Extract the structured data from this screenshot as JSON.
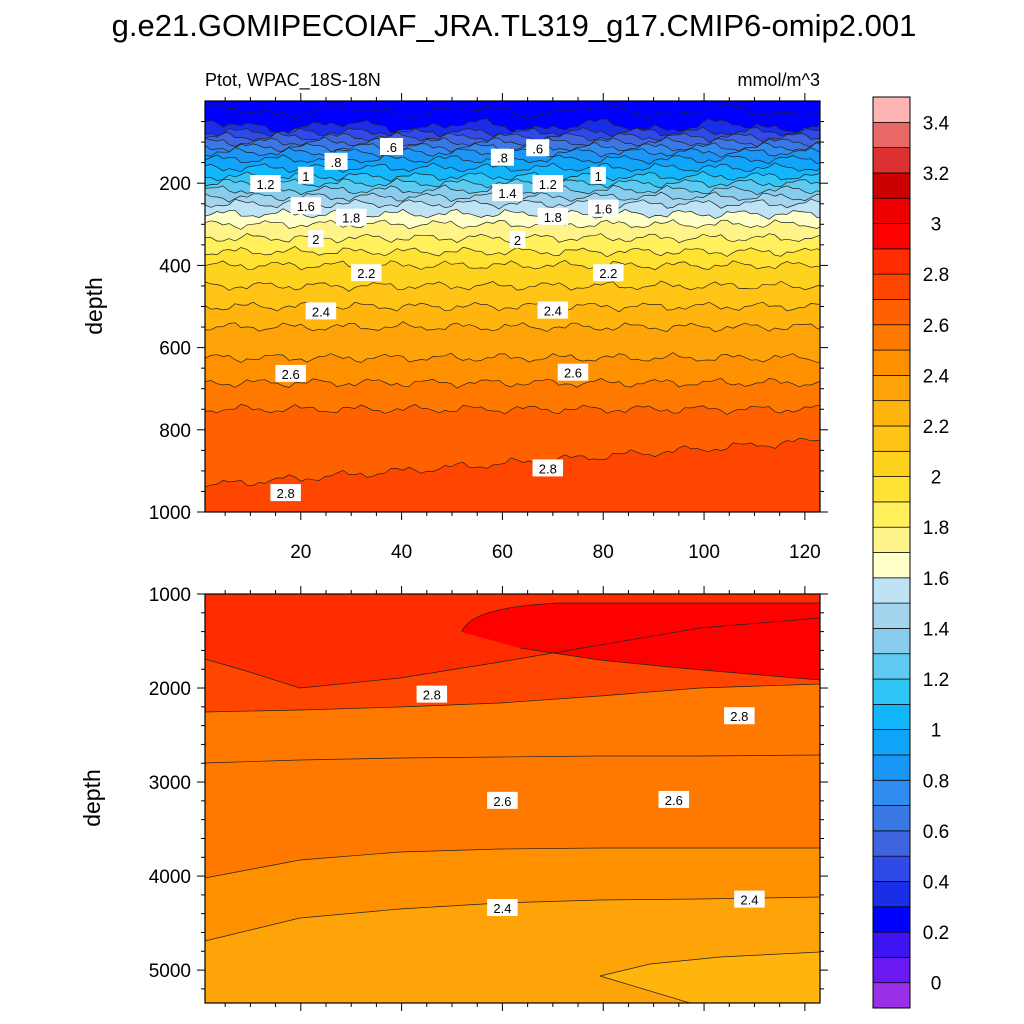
{
  "chart_data": {
    "type": "contour",
    "title": "g.e21.GOMIPECOIAF_JRA.TL319_g17.CMIP6-omip2.001",
    "subtitle_left": "Ptot, WPAC_18S-18N",
    "subtitle_right": "mmol/m^3",
    "colorbar": {
      "levels": [
        0,
        0.1,
        0.2,
        0.3,
        0.4,
        0.5,
        0.6,
        0.7,
        0.8,
        0.9,
        1,
        1.1,
        1.2,
        1.3,
        1.4,
        1.5,
        1.6,
        1.7,
        1.8,
        1.9,
        2,
        2.1,
        2.2,
        2.3,
        2.4,
        2.5,
        2.6,
        2.7,
        2.8,
        2.9,
        3,
        3.1,
        3.2,
        3.3,
        3.4,
        3.5
      ],
      "tick_labels": [
        "0",
        "0.2",
        "0.4",
        "0.6",
        "0.8",
        "1",
        "1.2",
        "1.4",
        "1.6",
        "1.8",
        "2",
        "2.2",
        "2.4",
        "2.6",
        "2.8",
        "3",
        "3.2",
        "3.4"
      ],
      "colors": [
        "#9a2fe8",
        "#6a1af0",
        "#3f14f2",
        "#0000ff",
        "#1a2de8",
        "#2f4ae8",
        "#3f64e0",
        "#3a78e6",
        "#2f8cf0",
        "#1a96f7",
        "#10a4fb",
        "#12b6fc",
        "#2fc6f5",
        "#5ecaf2",
        "#88cdee",
        "#a4d4ee",
        "#bde3f5",
        "#ffffc8",
        "#fff48a",
        "#fff05c",
        "#ffe232",
        "#ffd21e",
        "#ffc416",
        "#ffb40e",
        "#ffa408",
        "#ff9000",
        "#ff7800",
        "#ff6000",
        "#ff4600",
        "#ff2c00",
        "#ff0000",
        "#ee0000",
        "#cc0000",
        "#dd3030",
        "#e86868",
        "#ffb4b4"
      ]
    },
    "panels": [
      {
        "name": "upper",
        "ylabel": "depth",
        "y_range": [
          0,
          1000
        ],
        "y_ticks": [
          "200",
          "400",
          "600",
          "800",
          "1000"
        ],
        "x_range": [
          1,
          123
        ],
        "x_ticks": [
          "20",
          "40",
          "60",
          "80",
          "100",
          "120"
        ],
        "depth_profile": [
          [
            0,
            0.25
          ],
          [
            25,
            0.3
          ],
          [
            50,
            0.32
          ],
          [
            75,
            0.5
          ],
          [
            100,
            0.7
          ],
          [
            125,
            0.9
          ],
          [
            150,
            1.05
          ],
          [
            175,
            1.15
          ],
          [
            200,
            1.3
          ],
          [
            225,
            1.45
          ],
          [
            250,
            1.6
          ],
          [
            275,
            1.7
          ],
          [
            300,
            1.8
          ],
          [
            350,
            1.95
          ],
          [
            400,
            2.1
          ],
          [
            450,
            2.2
          ],
          [
            500,
            2.3
          ],
          [
            550,
            2.4
          ],
          [
            600,
            2.45
          ],
          [
            650,
            2.55
          ],
          [
            700,
            2.62
          ],
          [
            750,
            2.7
          ],
          [
            800,
            2.75
          ],
          [
            850,
            2.8
          ],
          [
            900,
            2.82
          ],
          [
            950,
            2.85
          ],
          [
            1000,
            2.87
          ]
        ],
        "contour_labels": [
          {
            "text": ".6",
            "x": 38,
            "y": 112
          },
          {
            "text": ".8",
            "x": 27,
            "y": 148
          },
          {
            "text": ".8",
            "x": 60,
            "y": 138
          },
          {
            "text": ".6",
            "x": 67,
            "y": 115
          },
          {
            "text": "1.2",
            "x": 13,
            "y": 202
          },
          {
            "text": "1",
            "x": 21,
            "y": 182
          },
          {
            "text": "1",
            "x": 79,
            "y": 182
          },
          {
            "text": "1.2",
            "x": 69,
            "y": 202
          },
          {
            "text": "1.4",
            "x": 61,
            "y": 224
          },
          {
            "text": "1.6",
            "x": 21,
            "y": 256
          },
          {
            "text": "1.6",
            "x": 80,
            "y": 262
          },
          {
            "text": "1.8",
            "x": 30,
            "y": 284
          },
          {
            "text": "1.8",
            "x": 70,
            "y": 282
          },
          {
            "text": "2",
            "x": 23,
            "y": 336
          },
          {
            "text": "2",
            "x": 63,
            "y": 338
          },
          {
            "text": "2.2",
            "x": 33,
            "y": 419
          },
          {
            "text": "2.2",
            "x": 81,
            "y": 419
          },
          {
            "text": "2.4",
            "x": 24,
            "y": 512
          },
          {
            "text": "2.4",
            "x": 70,
            "y": 510
          },
          {
            "text": "2.6",
            "x": 18,
            "y": 664
          },
          {
            "text": "2.6",
            "x": 74,
            "y": 661
          },
          {
            "text": "2.8",
            "x": 69,
            "y": 894
          },
          {
            "text": "2.8",
            "x": 17,
            "y": 954
          }
        ]
      },
      {
        "name": "lower",
        "ylabel": "depth",
        "y_range": [
          1000,
          5350
        ],
        "y_ticks": [
          "1000",
          "2000",
          "3000",
          "4000",
          "5000"
        ],
        "x_range": [
          1,
          123
        ],
        "contour_labels": [
          {
            "text": "2.8",
            "x": 46,
            "y": 2070
          },
          {
            "text": "2.8",
            "x": 107,
            "y": 2300
          },
          {
            "text": "2.6",
            "x": 60,
            "y": 3200
          },
          {
            "text": "2.6",
            "x": 94,
            "y": 3190
          },
          {
            "text": "2.4",
            "x": 60,
            "y": 4340
          },
          {
            "text": "2.4",
            "x": 109,
            "y": 4250
          }
        ]
      }
    ]
  }
}
